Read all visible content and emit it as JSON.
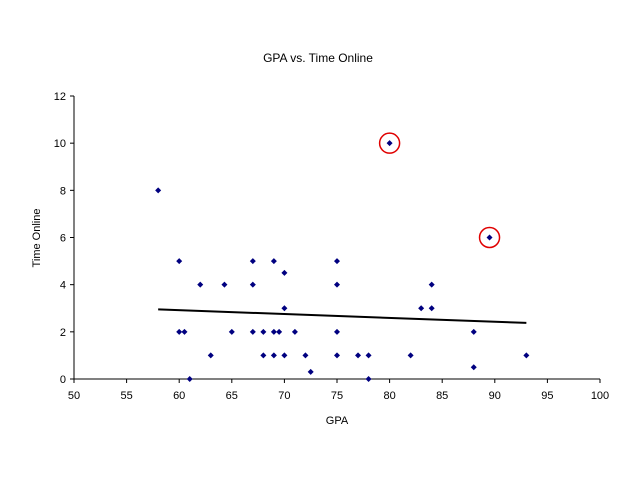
{
  "chart_data": {
    "type": "scatter",
    "title": "GPA vs. Time Online",
    "xlabel": "GPA",
    "ylabel": "Time Online",
    "xlim": [
      50,
      100
    ],
    "ylim": [
      0,
      12
    ],
    "x_ticks": [
      50,
      55,
      60,
      65,
      70,
      75,
      80,
      85,
      90,
      95,
      100
    ],
    "y_ticks": [
      0,
      2,
      4,
      6,
      8,
      10,
      12
    ],
    "grid": false,
    "legend": "none",
    "marker": "diamond",
    "marker_color": "#000080",
    "trendline": {
      "type": "linear",
      "color": "#000000",
      "x": [
        58,
        93
      ],
      "y": [
        2.95,
        2.38
      ]
    },
    "highlight_color": "#e00000",
    "highlighted_points": [
      [
        80,
        10
      ],
      [
        89.5,
        6
      ]
    ],
    "series": [
      {
        "points": [
          [
            58,
            8
          ],
          [
            60,
            5
          ],
          [
            60,
            2
          ],
          [
            60.5,
            2
          ],
          [
            61,
            0
          ],
          [
            62,
            4
          ],
          [
            63,
            1
          ],
          [
            64.3,
            4
          ],
          [
            65,
            2
          ],
          [
            67,
            5
          ],
          [
            67,
            4
          ],
          [
            67,
            2
          ],
          [
            68,
            2
          ],
          [
            68,
            1
          ],
          [
            69,
            5
          ],
          [
            69,
            2
          ],
          [
            69,
            1
          ],
          [
            69.5,
            2
          ],
          [
            70,
            4.5
          ],
          [
            70,
            3
          ],
          [
            70,
            1
          ],
          [
            71,
            2
          ],
          [
            72,
            1
          ],
          [
            72.5,
            0.3
          ],
          [
            75,
            5
          ],
          [
            75,
            4
          ],
          [
            75,
            2
          ],
          [
            75,
            1
          ],
          [
            77,
            1
          ],
          [
            78,
            1
          ],
          [
            78,
            0
          ],
          [
            80,
            10
          ],
          [
            82,
            1
          ],
          [
            83,
            3
          ],
          [
            84,
            4
          ],
          [
            84,
            3
          ],
          [
            88,
            2
          ],
          [
            88,
            0.5
          ],
          [
            89.5,
            6
          ],
          [
            93,
            1
          ]
        ]
      }
    ]
  }
}
